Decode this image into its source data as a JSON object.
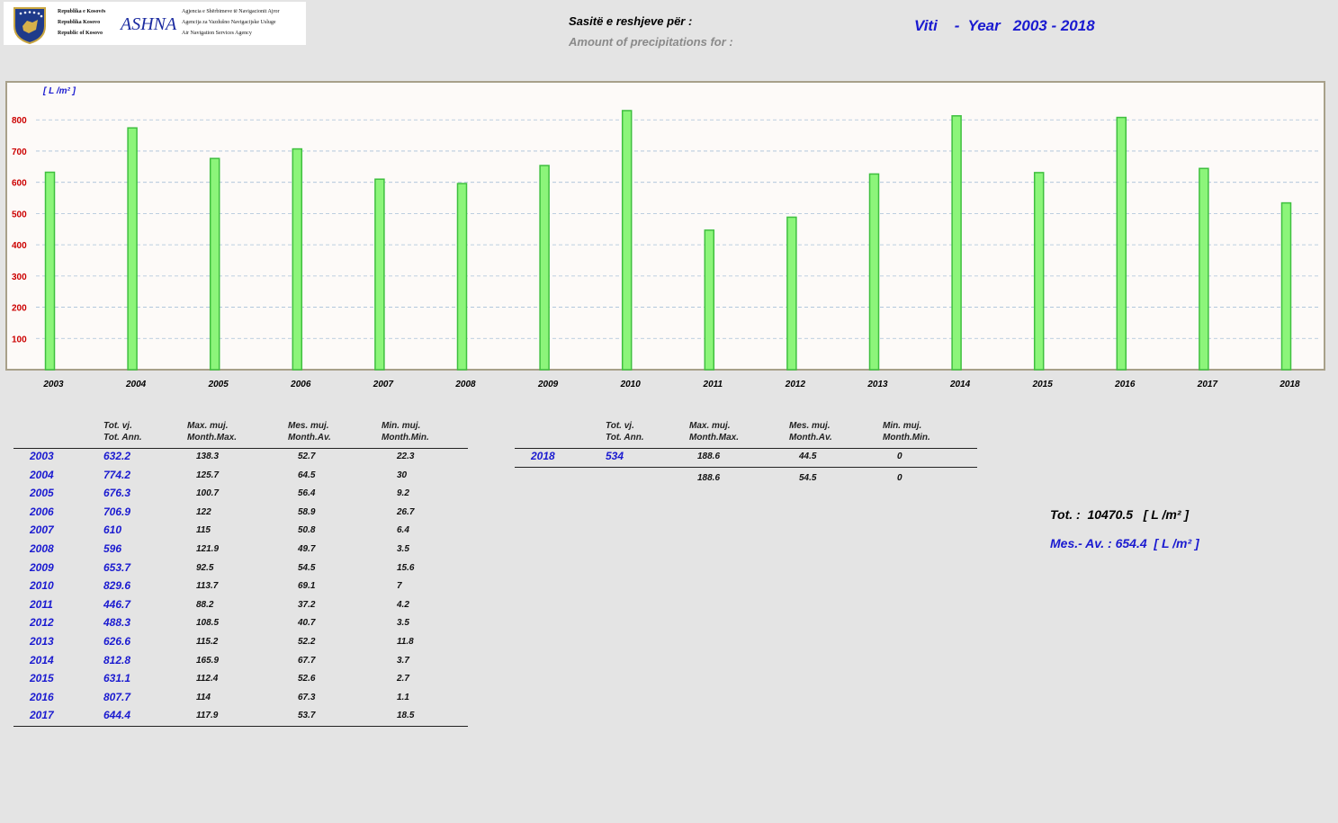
{
  "header": {
    "logo": {
      "republic_lines": [
        "Republika e Kosovës",
        "Republika Kosovo",
        "Republic of Kosovo"
      ],
      "name": "ASHNA",
      "agency_lines": [
        "Agjencia e Shërbimeve të Navigacionit Ajror",
        "Agencija za Vazdušno Navigacijske Usluge",
        "Air Navigation Services Agency"
      ]
    },
    "title_al": "Sasitë e reshjeve për :",
    "title_en": "Amount of precipitations for :",
    "year_label": "Viti    -  Year   2003 - 2018"
  },
  "chart_data": {
    "type": "bar",
    "unit_label": "[ L /m² ]",
    "categories": [
      "2003",
      "2004",
      "2005",
      "2006",
      "2007",
      "2008",
      "2009",
      "2010",
      "2011",
      "2012",
      "2013",
      "2014",
      "2015",
      "2016",
      "2017",
      "2018"
    ],
    "values": [
      632.2,
      774.2,
      676.3,
      706.9,
      610,
      596,
      653.7,
      829.6,
      446.7,
      488.3,
      626.6,
      812.8,
      631.1,
      807.7,
      644.4,
      534
    ],
    "y_ticks": [
      "100",
      "200",
      "300",
      "400",
      "500",
      "600",
      "700",
      "800"
    ],
    "ylim": [
      0,
      800
    ],
    "grid": true,
    "colors": {
      "bar_fill": "#8cf57a",
      "bar_stroke": "#3fbf3f",
      "plot_bg": "#fdfaf8",
      "frame": "#a8a08a",
      "grid": "#a8c0d8"
    }
  },
  "table": {
    "headers": [
      [
        "Tot. vj.",
        "Tot. Ann."
      ],
      [
        "Max. muj.",
        "Month.Max."
      ],
      [
        "Mes. muj.",
        "Month.Av."
      ],
      [
        "Min. muj.",
        "Month.Min."
      ]
    ],
    "left_rows": [
      {
        "year": "2003",
        "tot": "632.2",
        "max": "138.3",
        "avg": "52.7",
        "min": "22.3"
      },
      {
        "year": "2004",
        "tot": "774.2",
        "max": "125.7",
        "avg": "64.5",
        "min": "30"
      },
      {
        "year": "2005",
        "tot": "676.3",
        "max": "100.7",
        "avg": "56.4",
        "min": "9.2"
      },
      {
        "year": "2006",
        "tot": "706.9",
        "max": "122",
        "avg": "58.9",
        "min": "26.7"
      },
      {
        "year": "2007",
        "tot": "610",
        "max": "115",
        "avg": "50.8",
        "min": "6.4"
      },
      {
        "year": "2008",
        "tot": "596",
        "max": "121.9",
        "avg": "49.7",
        "min": "3.5"
      },
      {
        "year": "2009",
        "tot": "653.7",
        "max": "92.5",
        "avg": "54.5",
        "min": "15.6"
      },
      {
        "year": "2010",
        "tot": "829.6",
        "max": "113.7",
        "avg": "69.1",
        "min": "7"
      },
      {
        "year": "2011",
        "tot": "446.7",
        "max": "88.2",
        "avg": "37.2",
        "min": "4.2"
      },
      {
        "year": "2012",
        "tot": "488.3",
        "max": "108.5",
        "avg": "40.7",
        "min": "3.5"
      },
      {
        "year": "2013",
        "tot": "626.6",
        "max": "115.2",
        "avg": "52.2",
        "min": "11.8"
      },
      {
        "year": "2014",
        "tot": "812.8",
        "max": "165.9",
        "avg": "67.7",
        "min": "3.7"
      },
      {
        "year": "2015",
        "tot": "631.1",
        "max": "112.4",
        "avg": "52.6",
        "min": "2.7"
      },
      {
        "year": "2016",
        "tot": "807.7",
        "max": "114",
        "avg": "67.3",
        "min": "1.1"
      },
      {
        "year": "2017",
        "tot": "644.4",
        "max": "117.9",
        "avg": "53.7",
        "min": "18.5"
      }
    ],
    "right_rows": [
      {
        "year": "2018",
        "tot": "534",
        "max": "188.6",
        "avg": "44.5",
        "min": "0"
      }
    ],
    "right_footer": {
      "max": "188.6",
      "avg": "54.5",
      "min": "0"
    }
  },
  "summary": {
    "total": "Tot. :  10470.5   [ L /m² ]",
    "mean": "Mes.- Av. : 654.4  [ L /m² ]"
  }
}
